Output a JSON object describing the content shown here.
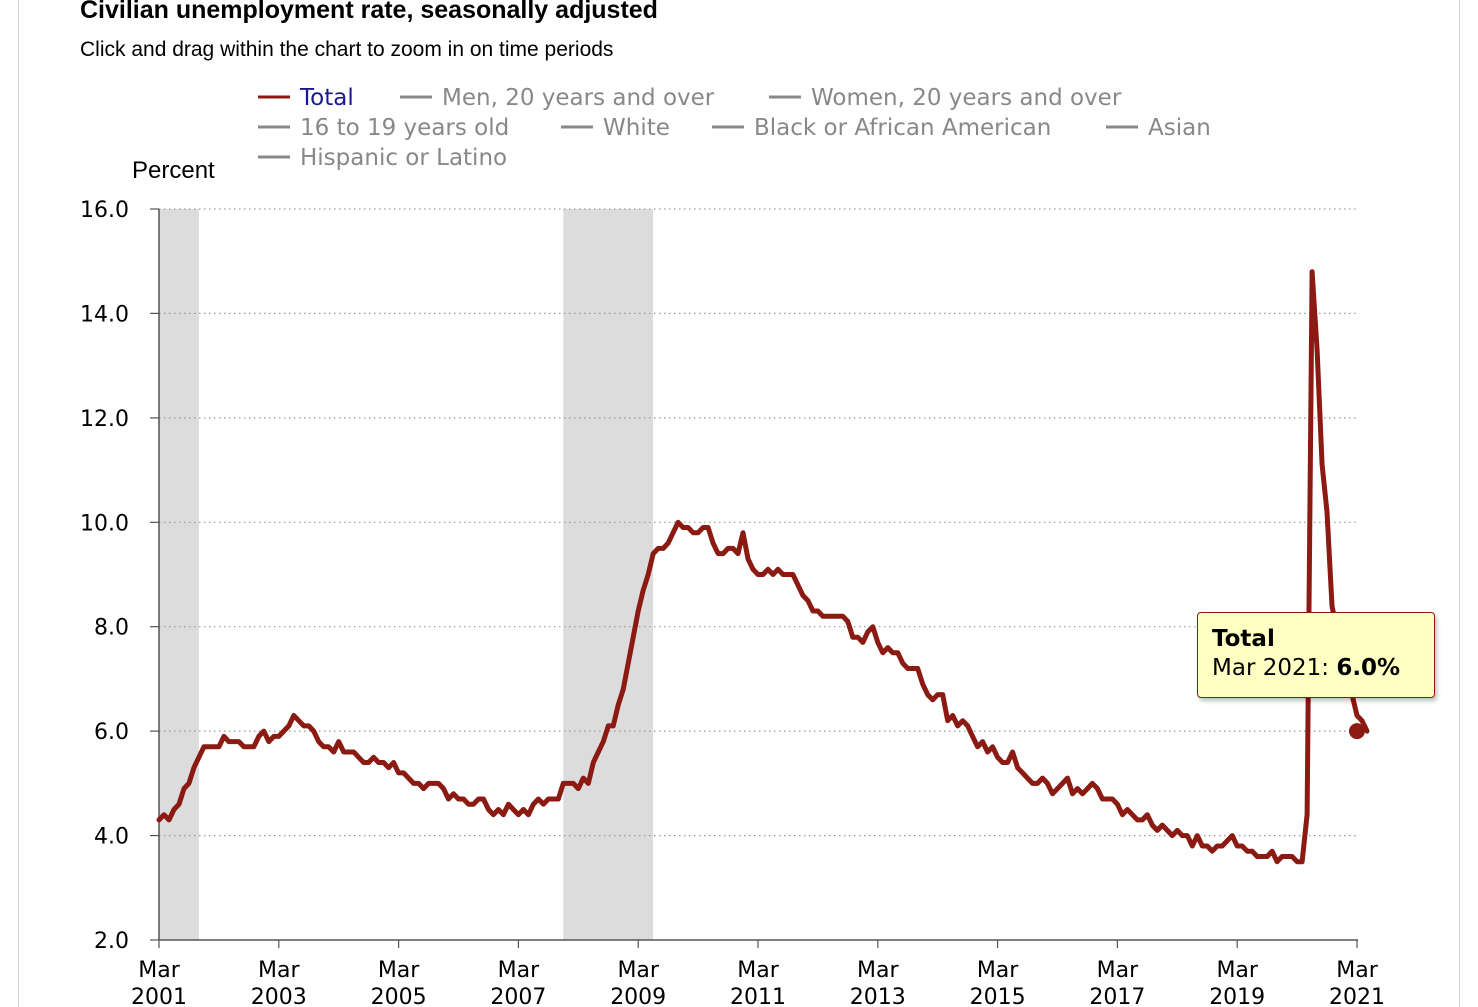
{
  "header": {
    "title": "Civilian unemployment rate, seasonally adjusted",
    "subtitle": "Click and drag within the chart to zoom in on time periods"
  },
  "legend": {
    "items": [
      {
        "label": "Total",
        "color": "#1a1a8c",
        "active": true
      },
      {
        "label": "Men, 20 years and over",
        "color": "#888888",
        "active": false
      },
      {
        "label": "Women, 20 years and over",
        "color": "#888888",
        "active": false
      },
      {
        "label": "16 to 19 years old",
        "color": "#888888",
        "active": false
      },
      {
        "label": "White",
        "color": "#888888",
        "active": false
      },
      {
        "label": "Black or African American",
        "color": "#888888",
        "active": false
      },
      {
        "label": "Asian",
        "color": "#888888",
        "active": false
      },
      {
        "label": "Hispanic or Latino",
        "color": "#888888",
        "active": false
      }
    ]
  },
  "tooltip": {
    "series": "Total",
    "period": "Mar 2021",
    "separator": ": ",
    "value": "6.0%"
  },
  "chart_data": {
    "type": "line",
    "ylabel": "Percent",
    "ylim": [
      2.0,
      16.0
    ],
    "yticks": [
      "16.0",
      "14.0",
      "12.0",
      "10.0",
      "8.0",
      "6.0",
      "4.0",
      "2.0"
    ],
    "xlim": [
      "2001-03",
      "2021-03"
    ],
    "xticks": [
      {
        "month": "Mar",
        "year": "2001"
      },
      {
        "month": "Mar",
        "year": "2003"
      },
      {
        "month": "Mar",
        "year": "2005"
      },
      {
        "month": "Mar",
        "year": "2007"
      },
      {
        "month": "Mar",
        "year": "2009"
      },
      {
        "month": "Mar",
        "year": "2011"
      },
      {
        "month": "Mar",
        "year": "2013"
      },
      {
        "month": "Mar",
        "year": "2015"
      },
      {
        "month": "Mar",
        "year": "2017"
      },
      {
        "month": "Mar",
        "year": "2019"
      },
      {
        "month": "Mar",
        "year": "2021"
      }
    ],
    "grid": "horizontal dotted",
    "recessions": [
      {
        "start": "2001-03",
        "end": "2001-11"
      },
      {
        "start": "2007-12",
        "end": "2009-06"
      }
    ],
    "series": [
      {
        "name": "Total",
        "color": "#8b1a12",
        "start": "2001-03",
        "values": [
          4.3,
          4.4,
          4.3,
          4.5,
          4.6,
          4.9,
          5.0,
          5.3,
          5.5,
          5.7,
          5.7,
          5.7,
          5.7,
          5.9,
          5.8,
          5.8,
          5.8,
          5.7,
          5.7,
          5.7,
          5.9,
          6.0,
          5.8,
          5.9,
          5.9,
          6.0,
          6.1,
          6.3,
          6.2,
          6.1,
          6.1,
          6.0,
          5.8,
          5.7,
          5.7,
          5.6,
          5.8,
          5.6,
          5.6,
          5.6,
          5.5,
          5.4,
          5.4,
          5.5,
          5.4,
          5.4,
          5.3,
          5.4,
          5.2,
          5.2,
          5.1,
          5.0,
          5.0,
          4.9,
          5.0,
          5.0,
          5.0,
          4.9,
          4.7,
          4.8,
          4.7,
          4.7,
          4.6,
          4.6,
          4.7,
          4.7,
          4.5,
          4.4,
          4.5,
          4.4,
          4.6,
          4.5,
          4.4,
          4.5,
          4.4,
          4.6,
          4.7,
          4.6,
          4.7,
          4.7,
          4.7,
          5.0,
          5.0,
          5.0,
          4.9,
          5.1,
          5.0,
          5.4,
          5.6,
          5.8,
          6.1,
          6.1,
          6.5,
          6.8,
          7.3,
          7.8,
          8.3,
          8.7,
          9.0,
          9.4,
          9.5,
          9.5,
          9.6,
          9.8,
          10.0,
          9.9,
          9.9,
          9.8,
          9.8,
          9.9,
          9.9,
          9.6,
          9.4,
          9.4,
          9.5,
          9.5,
          9.4,
          9.8,
          9.3,
          9.1,
          9.0,
          9.0,
          9.1,
          9.0,
          9.1,
          9.0,
          9.0,
          9.0,
          8.8,
          8.6,
          8.5,
          8.3,
          8.3,
          8.2,
          8.2,
          8.2,
          8.2,
          8.2,
          8.1,
          7.8,
          7.8,
          7.7,
          7.9,
          8.0,
          7.7,
          7.5,
          7.6,
          7.5,
          7.5,
          7.3,
          7.2,
          7.2,
          7.2,
          6.9,
          6.7,
          6.6,
          6.7,
          6.7,
          6.2,
          6.3,
          6.1,
          6.2,
          6.1,
          5.9,
          5.7,
          5.8,
          5.6,
          5.7,
          5.5,
          5.4,
          5.4,
          5.6,
          5.3,
          5.2,
          5.1,
          5.0,
          5.0,
          5.1,
          5.0,
          4.8,
          4.9,
          5.0,
          5.1,
          4.8,
          4.9,
          4.8,
          4.9,
          5.0,
          4.9,
          4.7,
          4.7,
          4.7,
          4.6,
          4.4,
          4.5,
          4.4,
          4.3,
          4.3,
          4.4,
          4.2,
          4.1,
          4.2,
          4.1,
          4.0,
          4.1,
          4.0,
          4.0,
          3.8,
          4.0,
          3.8,
          3.8,
          3.7,
          3.8,
          3.8,
          3.9,
          4.0,
          3.8,
          3.8,
          3.7,
          3.7,
          3.6,
          3.6,
          3.6,
          3.7,
          3.5,
          3.6,
          3.6,
          3.6,
          3.5,
          3.5,
          4.4,
          14.8,
          13.3,
          11.1,
          10.2,
          8.4,
          7.9,
          6.9,
          6.7,
          6.7,
          6.3,
          6.2,
          6.0
        ]
      }
    ],
    "highlight": {
      "date": "2021-03",
      "value": 6.0
    }
  }
}
